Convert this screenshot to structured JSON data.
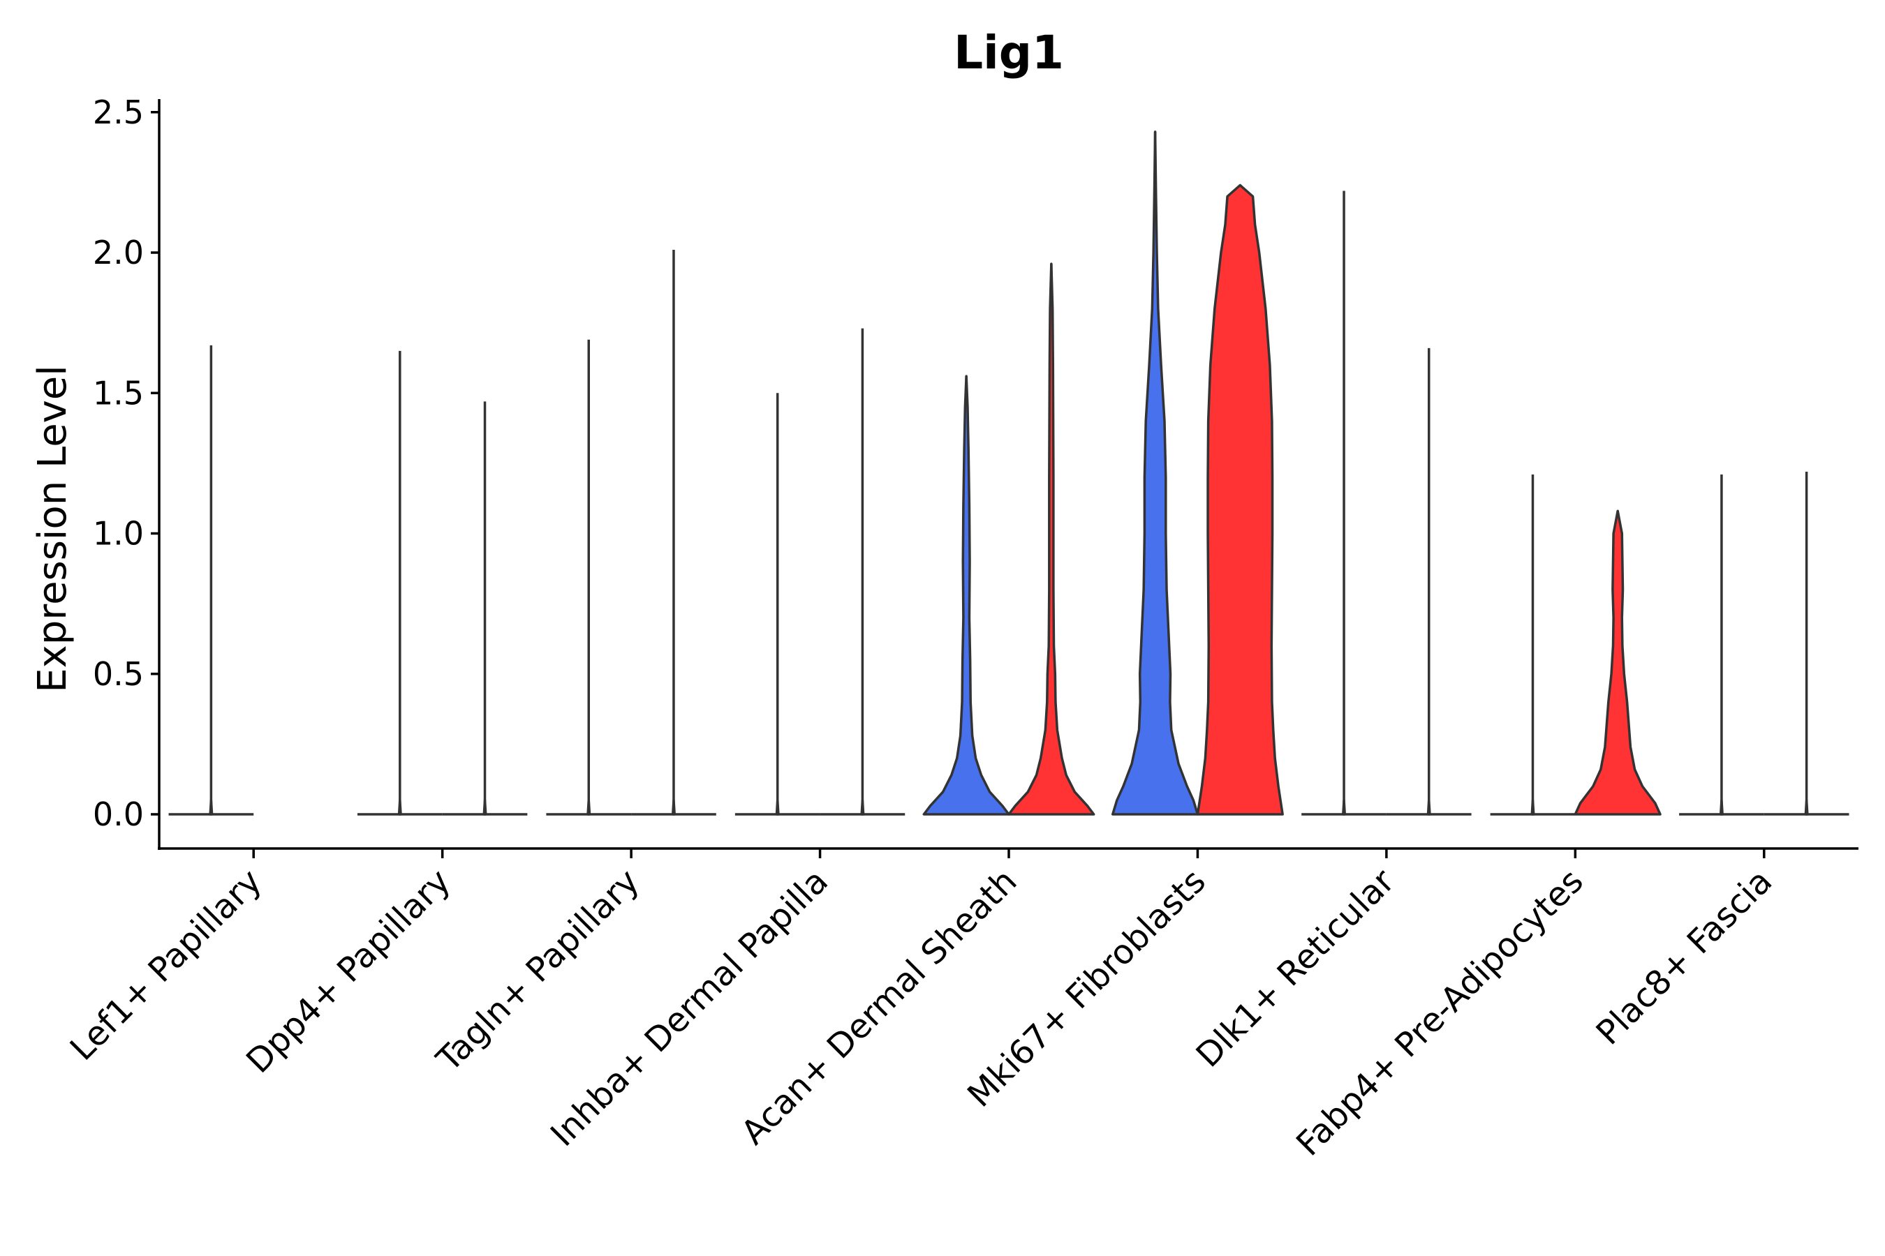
{
  "chart_data": {
    "type": "violin",
    "title": "Lig1",
    "ylabel": "Expression Level",
    "xlabel": "",
    "ylim": [
      -0.12,
      2.55
    ],
    "yticks": [
      0.0,
      0.5,
      1.0,
      1.5,
      2.0,
      2.5
    ],
    "ytick_labels": [
      "0.0",
      "0.5",
      "1.0",
      "1.5",
      "2.0",
      "2.5"
    ],
    "categories": [
      "Lef1+ Papillary",
      "Dpp4+ Papillary",
      "Tagln+ Papillary",
      "Inhba+ Dermal Papilla",
      "Acan+ Dermal Sheath",
      "Mki67+ Fibroblasts",
      "Dlk1+ Reticular",
      "Fabp4+ Pre-Adipocytes",
      "Plac8+ Fascia"
    ],
    "series": [
      {
        "name": "group-1",
        "color": "#4871EE",
        "violins": [
          {
            "max": 1.67,
            "profile": [
              [
                0.0,
                0.02
              ],
              [
                0.05,
                0.0
              ]
            ]
          },
          {
            "max": 1.65,
            "profile": [
              [
                0.0,
                0.02
              ],
              [
                0.05,
                0.0
              ]
            ]
          },
          {
            "max": 1.69,
            "profile": [
              [
                0.0,
                0.02
              ],
              [
                0.05,
                0.0
              ]
            ]
          },
          {
            "max": 1.5,
            "profile": [
              [
                0.0,
                0.02
              ],
              [
                0.05,
                0.0
              ]
            ]
          },
          {
            "max": 1.56,
            "profile": [
              [
                0.0,
                1.0
              ],
              [
                0.03,
                0.85
              ],
              [
                0.08,
                0.55
              ],
              [
                0.14,
                0.35
              ],
              [
                0.2,
                0.22
              ],
              [
                0.28,
                0.14
              ],
              [
                0.4,
                0.1
              ],
              [
                0.55,
                0.09
              ],
              [
                0.7,
                0.07
              ],
              [
                0.9,
                0.08
              ],
              [
                1.1,
                0.07
              ],
              [
                1.3,
                0.05
              ],
              [
                1.45,
                0.03
              ],
              [
                1.56,
                0.0
              ]
            ]
          },
          {
            "max": 2.43,
            "profile": [
              [
                0.0,
                1.0
              ],
              [
                0.05,
                0.9
              ],
              [
                0.1,
                0.75
              ],
              [
                0.18,
                0.55
              ],
              [
                0.3,
                0.38
              ],
              [
                0.4,
                0.35
              ],
              [
                0.5,
                0.36
              ],
              [
                0.6,
                0.33
              ],
              [
                0.8,
                0.27
              ],
              [
                1.0,
                0.25
              ],
              [
                1.2,
                0.25
              ],
              [
                1.4,
                0.22
              ],
              [
                1.6,
                0.14
              ],
              [
                1.8,
                0.07
              ],
              [
                2.0,
                0.04
              ],
              [
                2.2,
                0.02
              ],
              [
                2.43,
                0.0
              ]
            ]
          },
          {
            "max": 2.22,
            "profile": [
              [
                0.0,
                0.02
              ],
              [
                0.05,
                0.0
              ]
            ]
          },
          {
            "max": 1.21,
            "profile": [
              [
                0.0,
                0.02
              ],
              [
                0.05,
                0.0
              ]
            ]
          },
          {
            "max": 1.21,
            "profile": [
              [
                0.0,
                0.02
              ],
              [
                0.05,
                0.0
              ]
            ]
          }
        ]
      },
      {
        "name": "group-2",
        "color": "#FF3333",
        "violins": [
          {
            "max": null,
            "profile": []
          },
          {
            "max": 1.47,
            "profile": [
              [
                0.0,
                0.02
              ],
              [
                0.05,
                0.0
              ]
            ]
          },
          {
            "max": 2.01,
            "profile": [
              [
                0.0,
                0.02
              ],
              [
                0.05,
                0.0
              ]
            ]
          },
          {
            "max": 1.73,
            "profile": [
              [
                0.0,
                0.02
              ],
              [
                0.05,
                0.0
              ]
            ]
          },
          {
            "max": 1.96,
            "profile": [
              [
                0.0,
                1.0
              ],
              [
                0.03,
                0.85
              ],
              [
                0.08,
                0.55
              ],
              [
                0.14,
                0.35
              ],
              [
                0.2,
                0.25
              ],
              [
                0.3,
                0.14
              ],
              [
                0.4,
                0.1
              ],
              [
                0.5,
                0.09
              ],
              [
                0.6,
                0.06
              ],
              [
                0.8,
                0.05
              ],
              [
                1.2,
                0.05
              ],
              [
                1.6,
                0.04
              ],
              [
                1.8,
                0.03
              ],
              [
                1.96,
                0.0
              ]
            ]
          },
          {
            "max": 2.24,
            "profile": [
              [
                0.0,
                1.0
              ],
              [
                0.05,
                0.95
              ],
              [
                0.1,
                0.9
              ],
              [
                0.2,
                0.82
              ],
              [
                0.3,
                0.78
              ],
              [
                0.4,
                0.75
              ],
              [
                0.6,
                0.74
              ],
              [
                0.8,
                0.75
              ],
              [
                1.0,
                0.76
              ],
              [
                1.2,
                0.76
              ],
              [
                1.4,
                0.75
              ],
              [
                1.6,
                0.7
              ],
              [
                1.8,
                0.6
              ],
              [
                2.0,
                0.45
              ],
              [
                2.1,
                0.35
              ],
              [
                2.2,
                0.3
              ],
              [
                2.24,
                0.0
              ]
            ]
          },
          {
            "max": 1.66,
            "profile": [
              [
                0.0,
                0.02
              ],
              [
                0.05,
                0.0
              ]
            ]
          },
          {
            "max": 1.08,
            "profile": [
              [
                0.0,
                1.0
              ],
              [
                0.04,
                0.88
              ],
              [
                0.1,
                0.58
              ],
              [
                0.16,
                0.4
              ],
              [
                0.24,
                0.3
              ],
              [
                0.32,
                0.26
              ],
              [
                0.4,
                0.22
              ],
              [
                0.5,
                0.15
              ],
              [
                0.6,
                0.11
              ],
              [
                0.7,
                0.1
              ],
              [
                0.8,
                0.12
              ],
              [
                0.9,
                0.11
              ],
              [
                1.0,
                0.1
              ],
              [
                1.08,
                0.0
              ]
            ]
          },
          {
            "max": 1.22,
            "profile": [
              [
                0.0,
                0.02
              ],
              [
                0.05,
                0.0
              ]
            ]
          }
        ]
      }
    ],
    "legend": "none",
    "grid": false
  }
}
